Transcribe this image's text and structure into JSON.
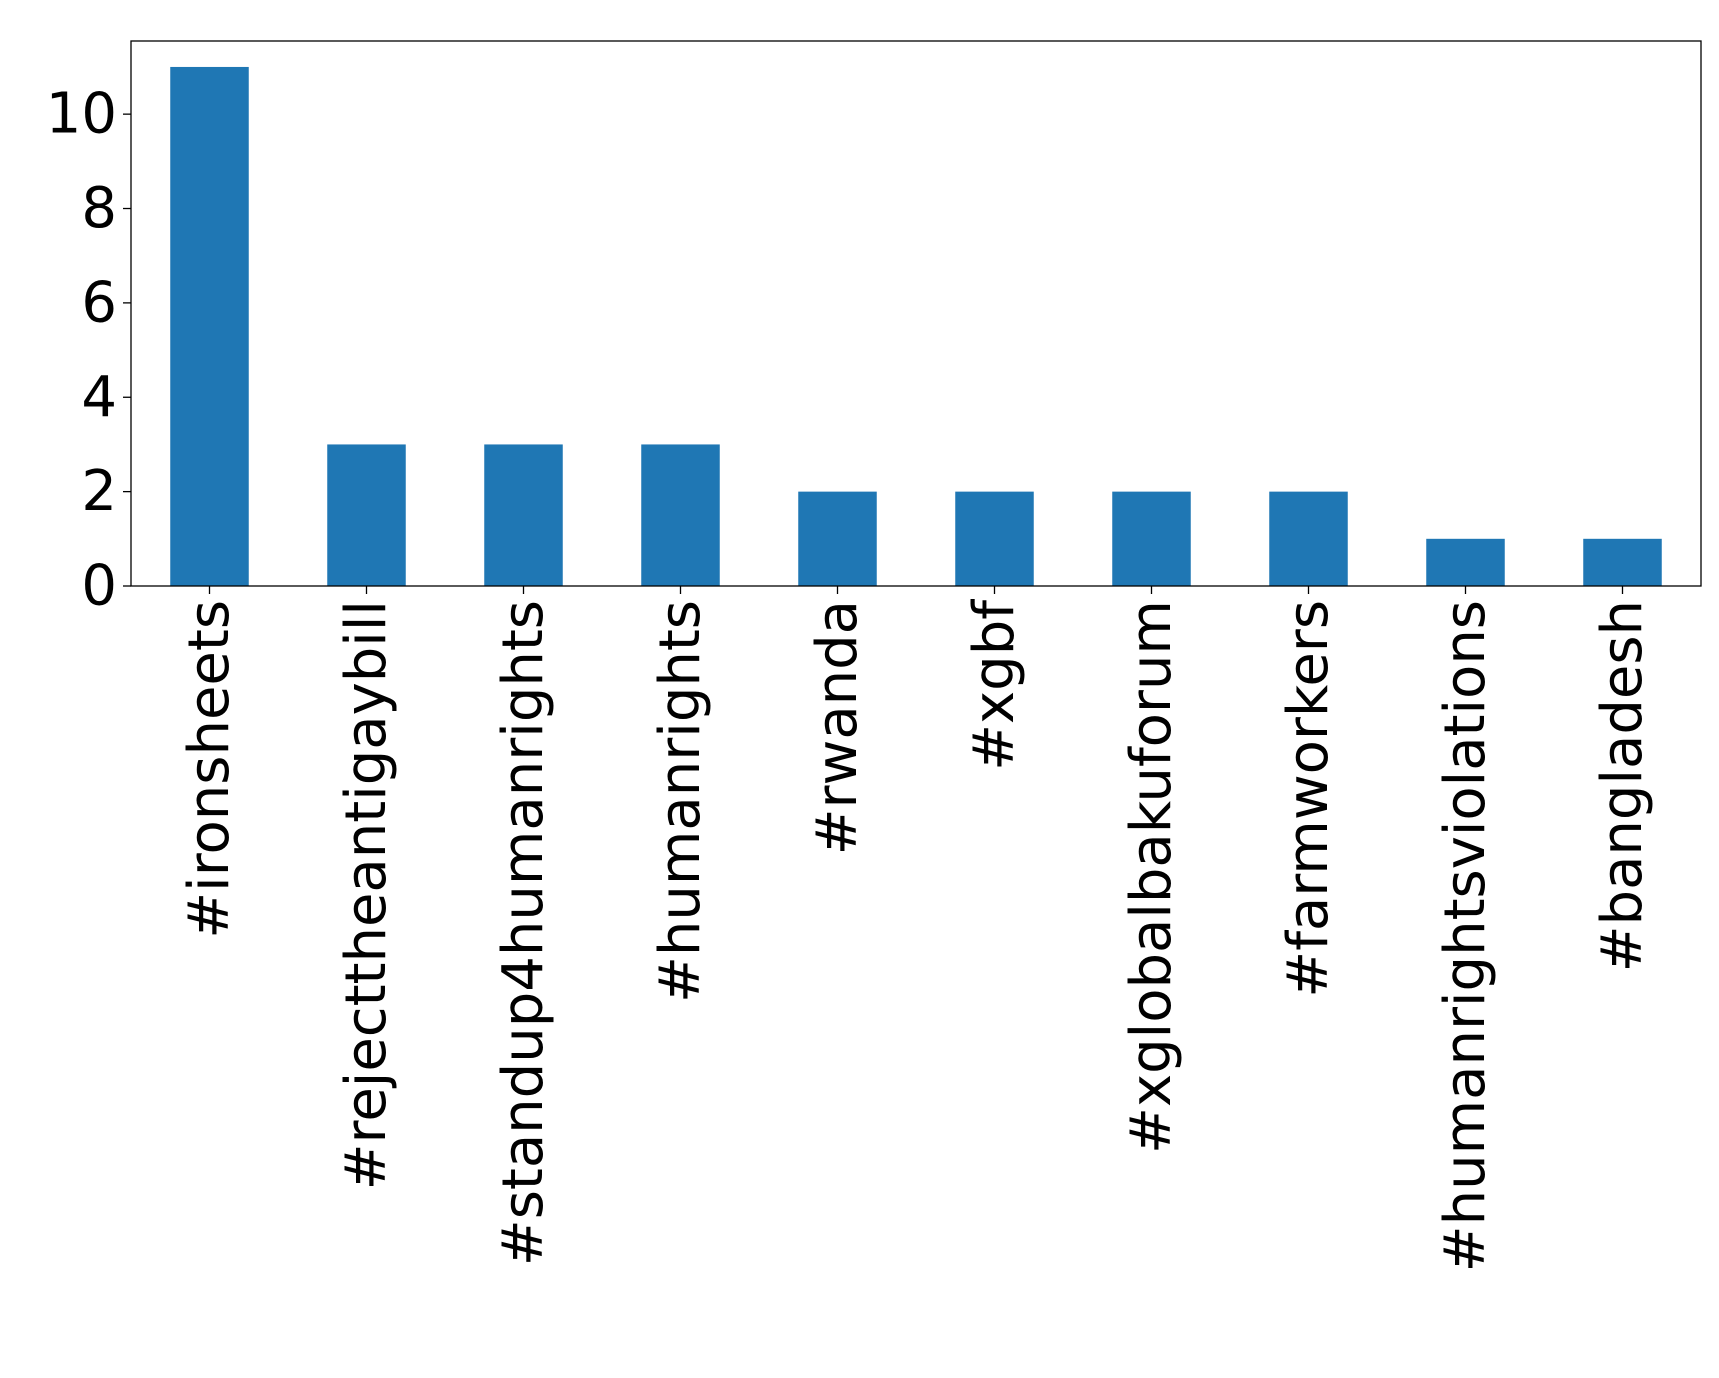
{
  "chart_data": {
    "type": "bar",
    "categories": [
      "#ironsheets",
      "#rejecttheantigaybill",
      "#standup4humanrights",
      "#humanrights",
      "#rwanda",
      "#xgbf",
      "#xglobalbakuforum",
      "#farmworkers",
      "#humanrightsviolations",
      "#bangladesh"
    ],
    "values": [
      11,
      3,
      3,
      3,
      2,
      2,
      2,
      2,
      1,
      1
    ],
    "ylim": [
      0,
      11.55
    ],
    "yticks": [
      0,
      2,
      4,
      6,
      8,
      10
    ],
    "ytick_labels": [
      "0",
      "2",
      "4",
      "6",
      "8",
      "10"
    ],
    "title": "",
    "xlabel": "",
    "ylabel": "",
    "bar_color": "#1f77b4",
    "grid": false,
    "legend": "none"
  }
}
